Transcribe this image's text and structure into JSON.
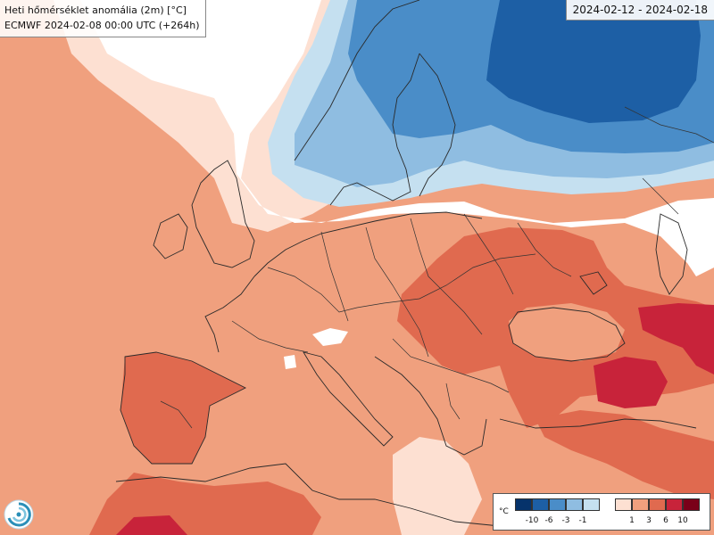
{
  "header": {
    "title": "Heti hőmérséklet anomália (2m) [°C]",
    "subtitle": "ECMWF 2024-02-08 00:00 UTC (+264h)",
    "period": "2024-02-12 - 2024-02-18"
  },
  "legend": {
    "unit": "°C",
    "cold_swatches": [
      "#06336b",
      "#1d5fa5",
      "#4a8dc8",
      "#8fbde1",
      "#c5e0f0"
    ],
    "warm_swatches": [
      "#fde0d2",
      "#f0a07e",
      "#e06a4f",
      "#c8233a",
      "#7a0019"
    ],
    "cold_labels": [
      "-10",
      "-6",
      "-3",
      "-1"
    ],
    "warm_labels": [
      "1",
      "3",
      "6",
      "10"
    ]
  },
  "colors": {
    "neutral": "#ffffff",
    "anom_1_3": "#f0a07e",
    "anom_3_6": "#e06a4f",
    "anom_6_10": "#c8233a",
    "anom_0_1": "#fde0d2",
    "cold_1_3": "#c5e0f0",
    "cold_3_6": "#8fbde1",
    "cold_6_10": "#4a8dc8",
    "cold_10": "#1d5fa5"
  },
  "logo": "ecmwf-logo"
}
